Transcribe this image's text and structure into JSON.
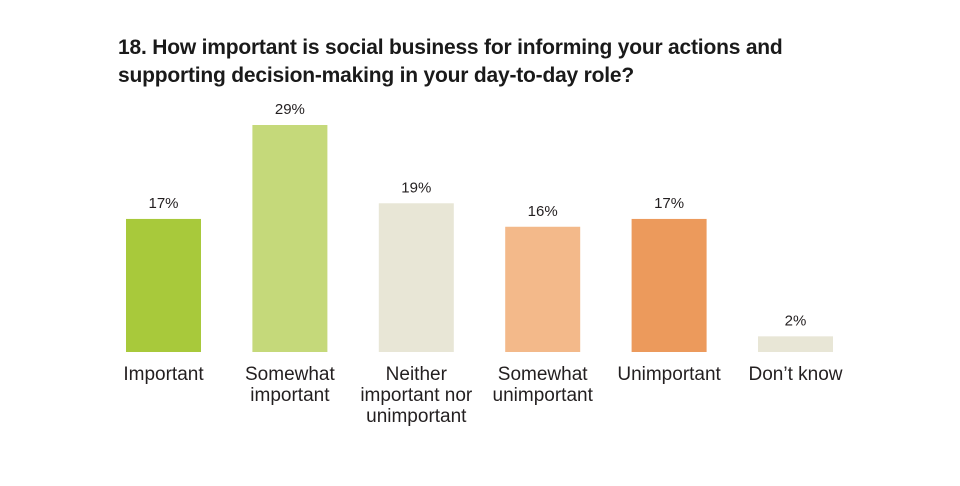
{
  "chart_data": {
    "type": "bar",
    "title": "18. How important is social business for informing your actions and supporting decision-making in your day-to-day role?",
    "categories": [
      [
        "Important"
      ],
      [
        "Somewhat",
        "important"
      ],
      [
        "Neither",
        "important nor",
        "unimportant"
      ],
      [
        "Somewhat",
        "unimportant"
      ],
      [
        "Unimportant"
      ],
      [
        "Don’t know"
      ]
    ],
    "values": [
      17,
      29,
      19,
      16,
      17,
      2
    ],
    "data_labels": [
      "17%",
      "29%",
      "19%",
      "16%",
      "17%",
      "2%"
    ],
    "colors": [
      "#a8c93b",
      "#c5d97a",
      "#e8e6d6",
      "#f3b98a",
      "#ec9a5c",
      "#e8e6d6"
    ],
    "unit": "%",
    "xlabel": "",
    "ylabel": "",
    "ylim": [
      0,
      29
    ],
    "grid": false,
    "legend": "none"
  }
}
